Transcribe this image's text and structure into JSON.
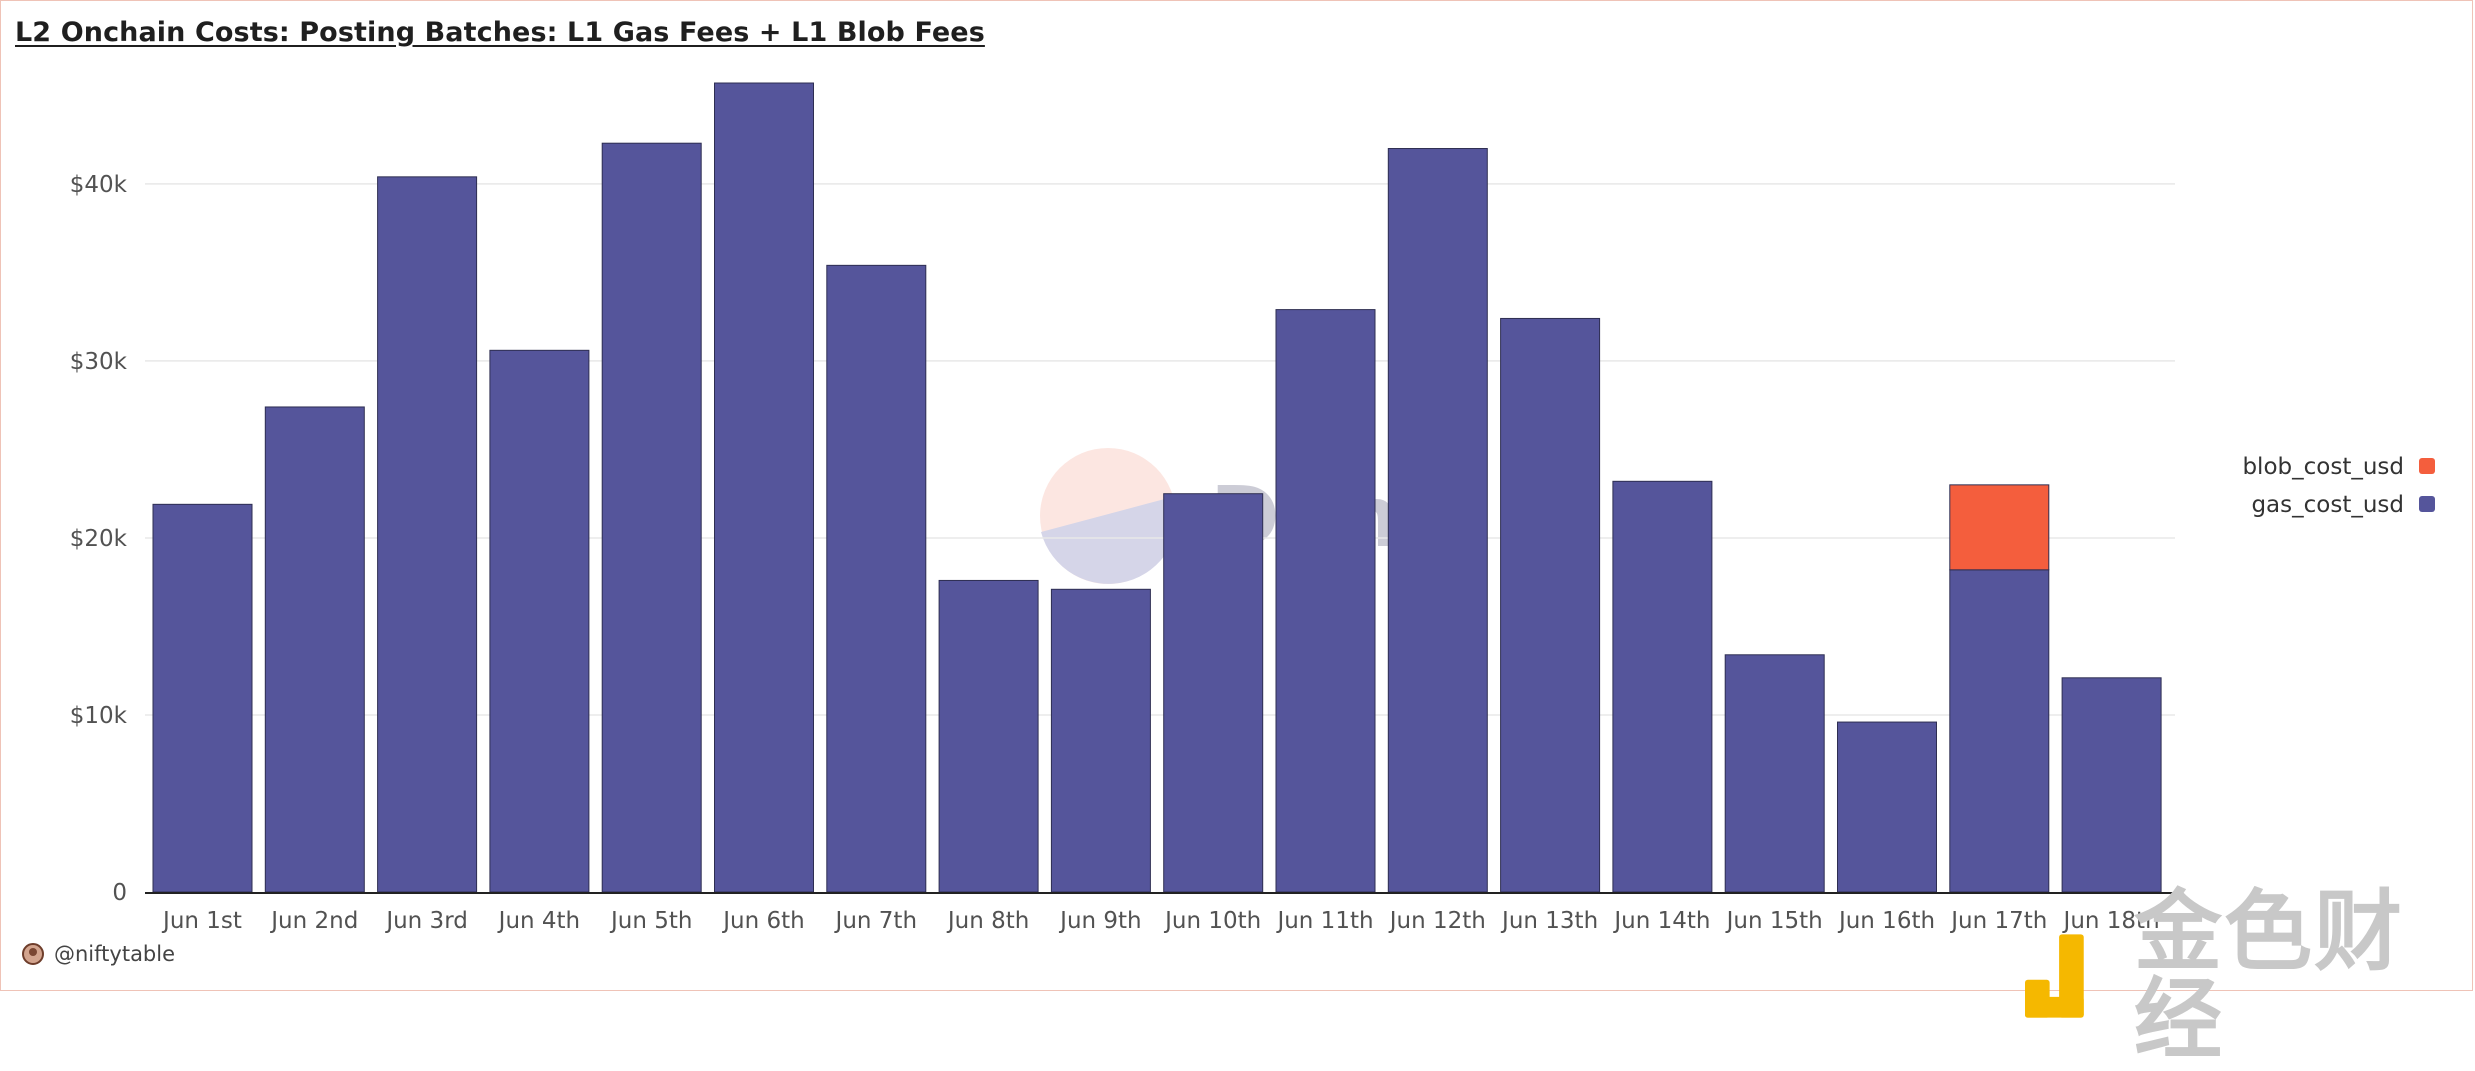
{
  "title": "L2 Onchain Costs: Posting Batches: L1 Gas Fees + L1 Blob Fees",
  "credit": "@niftytable",
  "watermark": {
    "dune_text": "Dune",
    "corner_text": "金色财经"
  },
  "colors": {
    "gas": "#55559b",
    "blob": "#f45e3d",
    "grid": "#e8e8e8",
    "axis": "#222222"
  },
  "chart_data": {
    "type": "bar",
    "stacked": true,
    "categories": [
      "Jun 1st",
      "Jun 2nd",
      "Jun 3rd",
      "Jun 4th",
      "Jun 5th",
      "Jun 6th",
      "Jun 7th",
      "Jun 8th",
      "Jun 9th",
      "Jun 10th",
      "Jun 11th",
      "Jun 12th",
      "Jun 13th",
      "Jun 14th",
      "Jun 15th",
      "Jun 16th",
      "Jun 17th",
      "Jun 18th"
    ],
    "series": [
      {
        "name": "gas_cost_usd",
        "color": "#55559b",
        "values": [
          21900,
          27400,
          40400,
          30600,
          42300,
          45700,
          35400,
          17600,
          17100,
          22500,
          32900,
          42000,
          32400,
          23200,
          13400,
          9600,
          18200,
          12100
        ]
      },
      {
        "name": "blob_cost_usd",
        "color": "#f45e3d",
        "values": [
          0,
          0,
          0,
          0,
          0,
          0,
          0,
          0,
          0,
          0,
          0,
          0,
          0,
          0,
          0,
          0,
          4800,
          0
        ]
      }
    ],
    "ylim": [
      0,
      47000
    ],
    "yticks": [
      0,
      10000,
      20000,
      30000,
      40000
    ],
    "ytick_labels": [
      "0",
      "$10k",
      "$20k",
      "$30k",
      "$40k"
    ],
    "grid": true,
    "legend_position": "right",
    "legend": [
      {
        "name": "blob_cost_usd",
        "color": "#f45e3d"
      },
      {
        "name": "gas_cost_usd",
        "color": "#55559b"
      }
    ]
  }
}
